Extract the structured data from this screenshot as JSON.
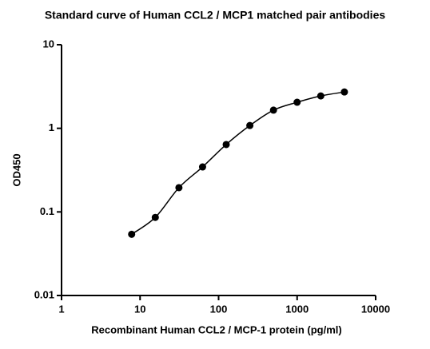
{
  "chart_data": {
    "type": "scatter",
    "title": "Standard curve of Human CCL2 / MCP1 matched pair antibodies",
    "x_label": "Recombinant Human CCL2 / MCP-1 protein (pg/ml)",
    "y_label": "OD450",
    "x": [
      7.8125,
      15.625,
      31.25,
      62.5,
      125,
      250,
      500,
      1000,
      2000,
      4000
    ],
    "series": [
      {
        "color": "#000000",
        "values": [
          0.054,
          0.086,
          0.195,
          0.345,
          0.64,
          1.08,
          1.65,
          2.05,
          2.44,
          2.72
        ]
      }
    ],
    "x_log": true,
    "y_log": true,
    "xlim": [
      1,
      10000
    ],
    "xticks": [
      1,
      10,
      100,
      1000,
      10000
    ],
    "ylim": [
      0.01,
      10
    ],
    "yticks": [
      0.01,
      0.1,
      1,
      10
    ],
    "fit_curve": true
  }
}
